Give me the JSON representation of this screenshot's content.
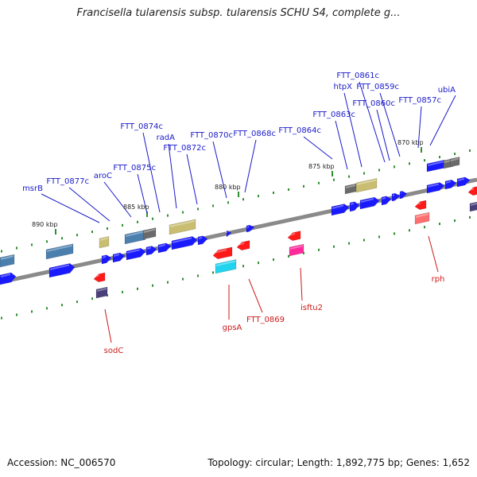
{
  "title": "Francisella tularensis subsp. tularensis SCHU S4, complete g...",
  "footer": {
    "accession": "Accession: NC_006570",
    "topology": "Topology: circular; Length: 1,892,775 bp; Genes: 1,652"
  },
  "colors": {
    "backbone": "#8a8a8a",
    "plus_gene": "#1a1aff",
    "minus_gene": "#ff1a1a",
    "plus_label": "#1a1acc",
    "minus_label": "#cc1a1a",
    "tick": "#2f8f2f",
    "khaki": "#c8bd70",
    "steel": "#4a7fae",
    "gray": "#6a6a6a",
    "cyan": "#22d3ee",
    "pink": "#ff2a9a",
    "salmon": "#ff6f6f",
    "slate": "#4a3f7a"
  },
  "scale_labels": [
    "870 kbp",
    "875 kbp",
    "880 kbp",
    "885 kbp",
    "890 kbp"
  ],
  "plus_labels": [
    "ubiA",
    "FTT_0857c",
    "FTT_0859c",
    "FTT_0860c",
    "FTT_0861c",
    "htpX",
    "FTT_0863c",
    "FTT_0864c",
    "FTT_0868c",
    "FTT_0870c",
    "FTT_0872c",
    "radA",
    "FTT_0874c",
    "FTT_0875c",
    "aroC",
    "FTT_0877c",
    "msrB"
  ],
  "minus_labels": [
    "rph",
    "isftu2",
    "FTT_0869",
    "gpsA",
    "sodC"
  ]
}
